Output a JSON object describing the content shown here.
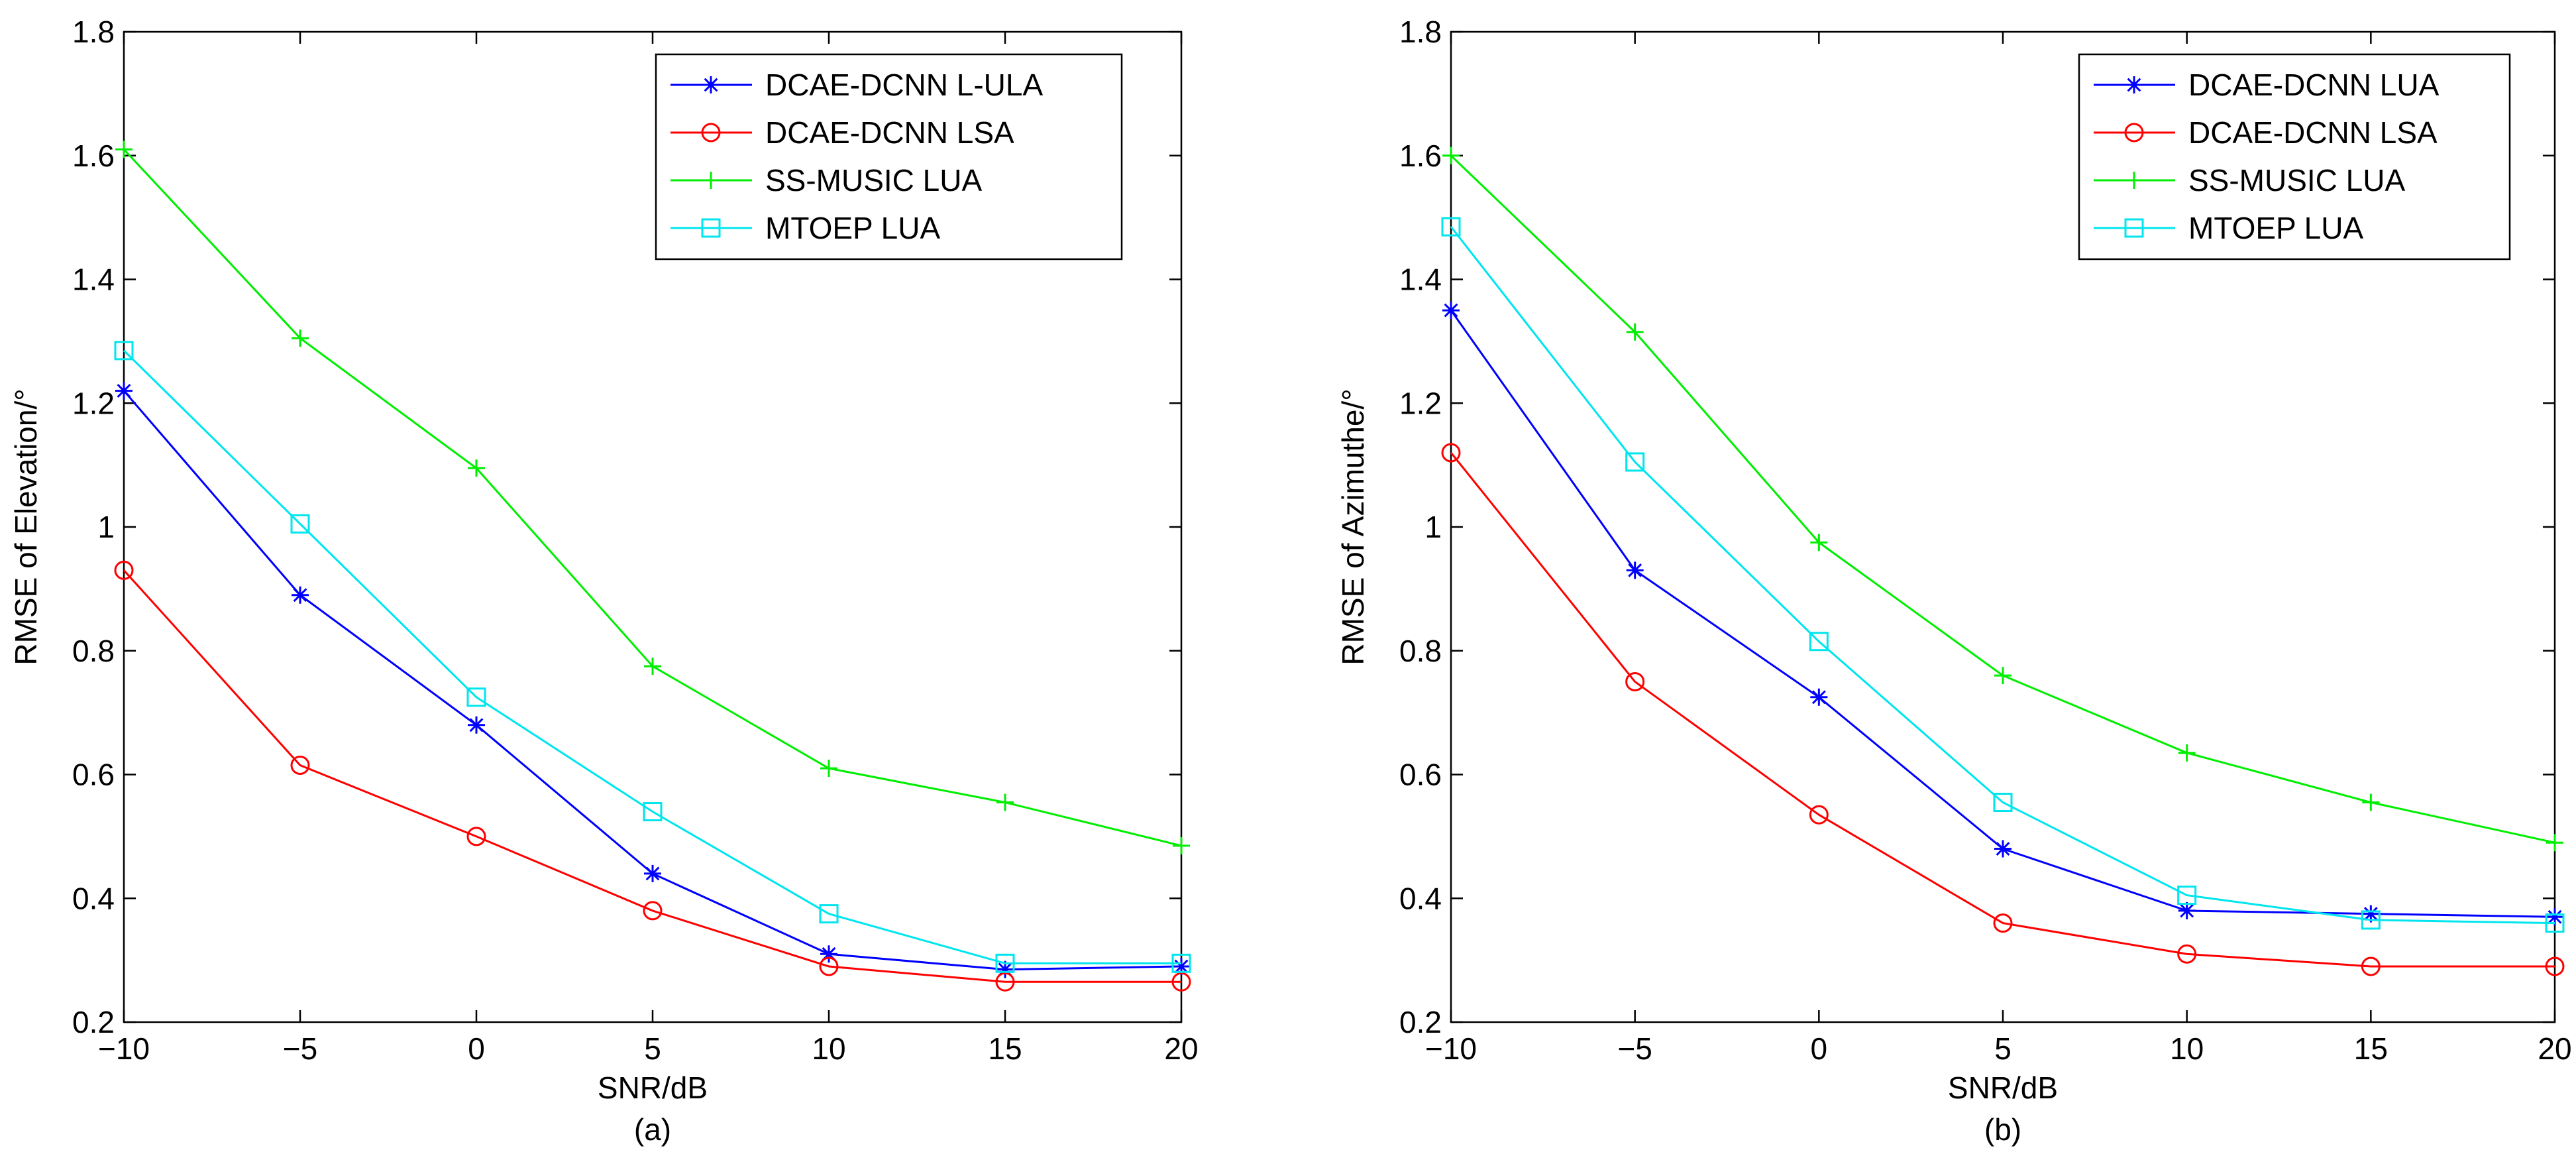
{
  "chart_data": [
    {
      "type": "line",
      "title": "",
      "xlabel": "SNR/dB",
      "ylabel": "RMSE of Elevation/°",
      "caption": "(a)",
      "x": [
        -10,
        -5,
        0,
        5,
        10,
        15,
        20
      ],
      "xlim": [
        -10,
        20
      ],
      "ylim": [
        0.2,
        1.8
      ],
      "xticks": [
        -10,
        -5,
        0,
        5,
        10,
        15,
        20
      ],
      "xtick_labels": [
        "−10",
        "−5",
        "0",
        "5",
        "10",
        "15",
        "20"
      ],
      "yticks": [
        0.2,
        0.4,
        0.6,
        0.8,
        1.0,
        1.2,
        1.4,
        1.6,
        1.8
      ],
      "ytick_labels": [
        "0.2",
        "0.4",
        "0.6",
        "0.8",
        "1",
        "1.2",
        "1.4",
        "1.6",
        "1.8"
      ],
      "grid": false,
      "legend_position": "top-right",
      "series": [
        {
          "name": "DCAE-DCNN L-ULA",
          "color": "#0000ff",
          "marker": "asterisk",
          "values": [
            1.22,
            0.89,
            0.68,
            0.44,
            0.31,
            0.285,
            0.29
          ]
        },
        {
          "name": "DCAE-DCNN LSA",
          "color": "#ff0000",
          "marker": "circle",
          "values": [
            0.93,
            0.615,
            0.5,
            0.38,
            0.29,
            0.265,
            0.265
          ]
        },
        {
          "name": "SS-MUSIC LUA",
          "color": "#00ee00",
          "marker": "plus",
          "values": [
            1.61,
            1.305,
            1.095,
            0.775,
            0.61,
            0.555,
            0.485
          ]
        },
        {
          "name": "MTOEP LUA",
          "color": "#00e5ee",
          "marker": "square",
          "values": [
            1.285,
            1.005,
            0.725,
            0.54,
            0.375,
            0.295,
            0.295
          ]
        }
      ]
    },
    {
      "type": "line",
      "title": "",
      "xlabel": "SNR/dB",
      "ylabel": "RMSE of Azimuthe/°",
      "caption": "(b)",
      "x": [
        -10,
        -5,
        0,
        5,
        10,
        15,
        20
      ],
      "xlim": [
        -10,
        20
      ],
      "ylim": [
        0.2,
        1.8
      ],
      "xticks": [
        -10,
        -5,
        0,
        5,
        10,
        15,
        20
      ],
      "xtick_labels": [
        "−10",
        "−5",
        "0",
        "5",
        "10",
        "15",
        "20"
      ],
      "yticks": [
        0.2,
        0.4,
        0.6,
        0.8,
        1.0,
        1.2,
        1.4,
        1.6,
        1.8
      ],
      "ytick_labels": [
        "0.2",
        "0.4",
        "0.6",
        "0.8",
        "1",
        "1.2",
        "1.4",
        "1.6",
        "1.8"
      ],
      "grid": false,
      "legend_position": "top-right",
      "series": [
        {
          "name": "DCAE-DCNN LUA",
          "color": "#0000ff",
          "marker": "asterisk",
          "values": [
            1.35,
            0.93,
            0.725,
            0.48,
            0.38,
            0.375,
            0.37
          ]
        },
        {
          "name": "DCAE-DCNN LSA",
          "color": "#ff0000",
          "marker": "circle",
          "values": [
            1.12,
            0.75,
            0.535,
            0.36,
            0.31,
            0.29,
            0.29
          ]
        },
        {
          "name": "SS-MUSIC LUA",
          "color": "#00ee00",
          "marker": "plus",
          "values": [
            1.6,
            1.315,
            0.975,
            0.76,
            0.635,
            0.555,
            0.49
          ]
        },
        {
          "name": "MTOEP LUA",
          "color": "#00e5ee",
          "marker": "square",
          "values": [
            1.485,
            1.105,
            0.815,
            0.555,
            0.405,
            0.365,
            0.36
          ]
        }
      ]
    }
  ]
}
